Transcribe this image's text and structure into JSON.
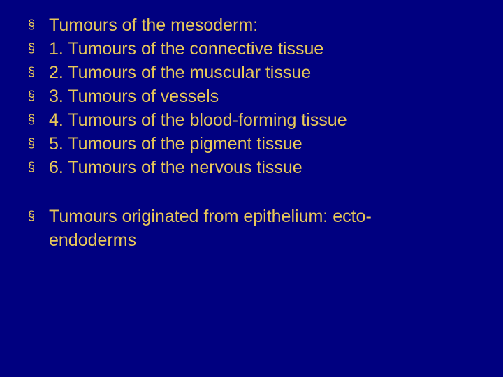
{
  "slide": {
    "background_color": "#000080",
    "text_color": "#e8c858",
    "bullet_marker": "§",
    "font_family": "Arial",
    "font_size_pt": 25,
    "line_height": 1.28,
    "group1": {
      "items": [
        "Tumours of the mesoderm:",
        "1. Tumours of the connective tissue",
        "2. Tumours of the muscular tissue",
        "3. Tumours of vessels",
        "4. Tumours of the blood-forming tissue",
        "5. Tumours of the pigment tissue",
        "6. Tumours of the nervous tissue"
      ]
    },
    "group2": {
      "line1": "Tumours originated from epithelium: ecto-",
      "line2": "endoderms"
    }
  }
}
